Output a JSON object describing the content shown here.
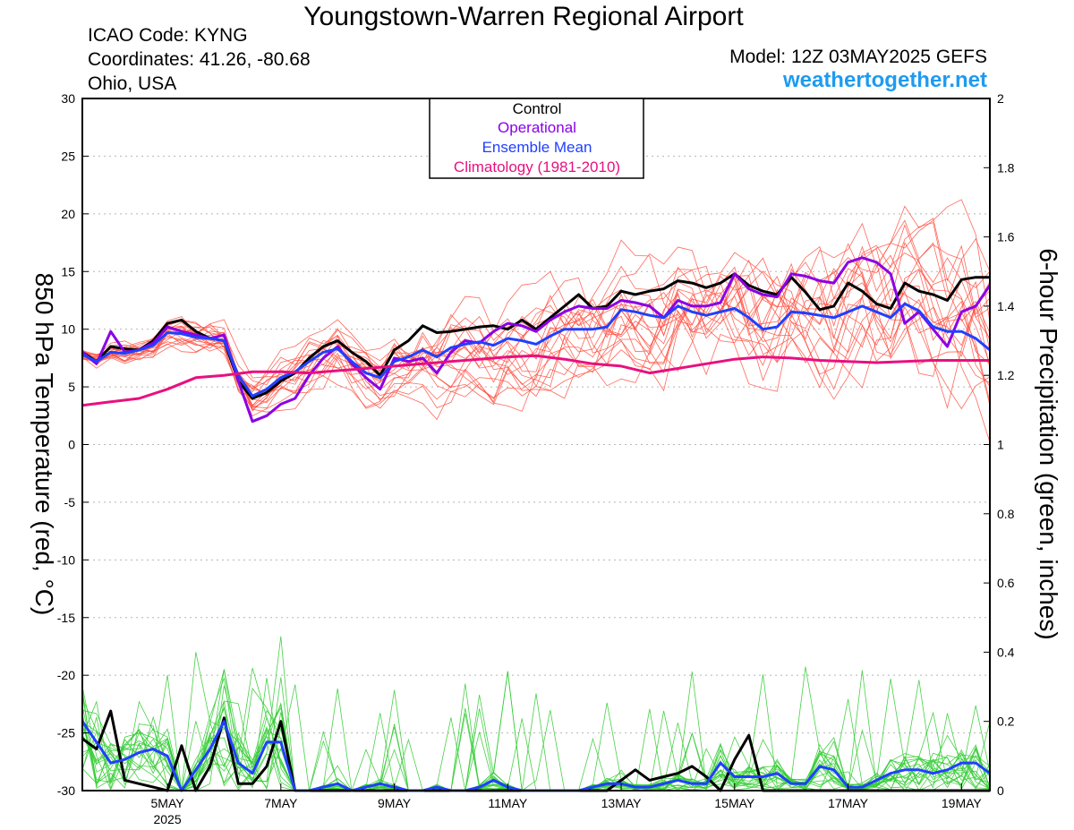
{
  "header": {
    "title": "Youngstown-Warren Regional Airport",
    "icao": "ICAO Code: KYNG",
    "coords": "Coordinates: 41.26, -80.68",
    "region": "Ohio, USA",
    "model": "Model: 12Z 03MAY2025 GEFS",
    "site": "weathertogether.net"
  },
  "colors": {
    "members_temp": "#ff4d40",
    "members_precip": "#33cc33",
    "control": "#000000",
    "operational": "#8a00e6",
    "ens_mean": "#2040ff",
    "climatology": "#e8107f"
  },
  "chart_data": {
    "type": "line",
    "xlabel": "",
    "ylabel": "850 hPa Temperature (red, °C)",
    "y2label": "6-hour Precipitation (green, inches)",
    "ylim": [
      -30,
      30
    ],
    "y2lim": [
      0,
      2
    ],
    "xlim": [
      3.5,
      19.5
    ],
    "x_unit": "day of May 2025 (fractional)",
    "yticks": [
      "30",
      "25",
      "20",
      "15",
      "10",
      "5",
      "0",
      "-5",
      "-10",
      "-15",
      "-20",
      "-25",
      "-30"
    ],
    "y2ticks": [
      "2",
      "1.8",
      "1.6",
      "1.4",
      "1.2",
      "1",
      "0.8",
      "0.6",
      "0.4",
      "0.2",
      "0"
    ],
    "xticks": [
      {
        "x": 5,
        "label": "5MAY",
        "sub": "2025"
      },
      {
        "x": 7,
        "label": "7MAY",
        "sub": ""
      },
      {
        "x": 9,
        "label": "9MAY",
        "sub": ""
      },
      {
        "x": 11,
        "label": "11MAY",
        "sub": ""
      },
      {
        "x": 13,
        "label": "13MAY",
        "sub": ""
      },
      {
        "x": 15,
        "label": "15MAY",
        "sub": ""
      },
      {
        "x": 17,
        "label": "17MAY",
        "sub": ""
      },
      {
        "x": 19,
        "label": "19MAY",
        "sub": ""
      }
    ],
    "grid": true,
    "legend": [
      "Control",
      "Operational",
      "Ensemble Mean",
      "Climatology (1981-2010)"
    ],
    "legend_position": "top-center",
    "series": [
      {
        "name": "Control",
        "axis": "temp",
        "x": [
          3.5,
          3.75,
          4.0,
          4.25,
          4.5,
          4.75,
          5.0,
          5.25,
          5.5,
          5.75,
          6.0,
          6.25,
          6.5,
          6.75,
          7.0,
          7.25,
          7.5,
          7.75,
          8.0,
          8.25,
          8.5,
          8.75,
          9.0,
          9.25,
          9.5,
          9.75,
          10.0,
          10.25,
          10.5,
          10.75,
          11.0,
          11.25,
          11.5,
          11.75,
          12.0,
          12.25,
          12.5,
          12.75,
          13.0,
          13.25,
          13.5,
          13.75,
          14.0,
          14.25,
          14.5,
          14.75,
          15.0,
          15.25,
          15.5,
          15.75,
          16.0,
          16.25,
          16.5,
          16.75,
          17.0,
          17.25,
          17.5,
          17.75,
          18.0,
          18.25,
          18.5,
          18.75,
          19.0,
          19.25,
          19.5
        ],
        "y": [
          8.0,
          7.2,
          8.5,
          8.3,
          8.2,
          9.0,
          10.5,
          10.8,
          9.8,
          9.2,
          9.0,
          5.5,
          4.0,
          4.5,
          5.5,
          6.2,
          7.5,
          8.5,
          9.0,
          8.0,
          7.2,
          6.0,
          8.2,
          9.0,
          10.3,
          9.7,
          9.8,
          10.0,
          10.2,
          10.3,
          10.0,
          10.8,
          10.0,
          11.0,
          12.0,
          13.0,
          11.8,
          12.0,
          13.3,
          13.0,
          13.3,
          13.5,
          14.2,
          14.0,
          13.6,
          14.0,
          14.8,
          13.8,
          13.3,
          13.0,
          14.5,
          13.2,
          11.7,
          12.0,
          14.0,
          13.3,
          12.2,
          11.8,
          14.0,
          13.3,
          13.0,
          12.5,
          14.3,
          14.5,
          14.5
        ]
      },
      {
        "name": "Operational",
        "axis": "temp",
        "x": [
          3.5,
          3.75,
          4.0,
          4.25,
          4.5,
          4.75,
          5.0,
          5.25,
          5.5,
          5.75,
          6.0,
          6.25,
          6.5,
          6.75,
          7.0,
          7.25,
          7.5,
          7.75,
          8.0,
          8.25,
          8.5,
          8.75,
          9.0,
          9.25,
          9.5,
          9.75,
          10.0,
          10.25,
          10.5,
          10.75,
          11.0,
          11.25,
          11.5,
          11.75,
          12.0,
          12.25,
          12.5,
          12.75,
          13.0,
          13.25,
          13.5,
          13.75,
          14.0,
          14.25,
          14.5,
          14.75,
          15.0,
          15.25,
          15.5,
          15.75,
          16.0,
          16.25,
          16.5,
          16.75,
          17.0,
          17.25,
          17.5,
          17.75,
          18.0,
          18.25,
          18.5,
          18.75,
          19.0,
          19.25,
          19.5
        ],
        "y": [
          8.0,
          7.0,
          9.8,
          8.0,
          8.2,
          8.8,
          10.2,
          9.8,
          9.5,
          9.2,
          9.5,
          5.5,
          2.0,
          2.5,
          3.5,
          4.0,
          6.0,
          7.5,
          8.5,
          7.0,
          5.8,
          4.8,
          7.5,
          7.2,
          7.5,
          6.2,
          8.0,
          9.0,
          8.8,
          9.8,
          10.5,
          10.3,
          9.8,
          10.8,
          11.5,
          12.0,
          11.8,
          11.8,
          12.5,
          12.3,
          12.0,
          11.0,
          12.5,
          12.0,
          12.0,
          12.3,
          14.8,
          13.5,
          13.0,
          12.8,
          14.8,
          14.6,
          14.2,
          14.0,
          15.8,
          16.2,
          15.8,
          14.8,
          10.5,
          11.5,
          10.0,
          8.5,
          11.5,
          12.0,
          13.8
        ]
      },
      {
        "name": "Ensemble Mean",
        "axis": "temp",
        "x": [
          3.5,
          3.75,
          4.0,
          4.25,
          4.5,
          4.75,
          5.0,
          5.25,
          5.5,
          5.75,
          6.0,
          6.25,
          6.5,
          6.75,
          7.0,
          7.25,
          7.5,
          7.75,
          8.0,
          8.25,
          8.5,
          8.75,
          9.0,
          9.25,
          9.5,
          9.75,
          10.0,
          10.25,
          10.5,
          10.75,
          11.0,
          11.25,
          11.5,
          11.75,
          12.0,
          12.25,
          12.5,
          12.75,
          13.0,
          13.25,
          13.5,
          13.75,
          14.0,
          14.25,
          14.5,
          14.75,
          15.0,
          15.25,
          15.5,
          15.75,
          16.0,
          16.25,
          16.5,
          16.75,
          17.0,
          17.25,
          17.5,
          17.75,
          18.0,
          18.25,
          18.5,
          18.75,
          19.0,
          19.25,
          19.5
        ],
        "y": [
          7.8,
          7.2,
          8.0,
          7.9,
          8.2,
          8.6,
          9.7,
          9.6,
          9.3,
          9.2,
          9.0,
          6.0,
          4.2,
          4.8,
          5.8,
          6.3,
          7.2,
          8.0,
          8.3,
          7.2,
          6.2,
          5.8,
          7.2,
          7.6,
          8.2,
          7.6,
          8.4,
          8.7,
          8.9,
          8.6,
          9.2,
          9.0,
          8.7,
          9.4,
          10.0,
          10.0,
          10.0,
          10.2,
          11.7,
          11.5,
          11.2,
          11.0,
          12.0,
          11.5,
          11.2,
          11.5,
          11.8,
          11.0,
          10.0,
          10.2,
          11.5,
          11.4,
          11.2,
          11.0,
          11.5,
          12.0,
          11.5,
          11.0,
          12.2,
          11.6,
          10.2,
          9.8,
          9.8,
          9.2,
          8.2
        ]
      },
      {
        "name": "Climatology (1981-2010)",
        "axis": "temp",
        "x": [
          3.5,
          4.0,
          4.5,
          5.0,
          5.5,
          6.0,
          6.5,
          7.0,
          7.5,
          8.0,
          8.5,
          9.0,
          9.5,
          10.0,
          10.5,
          11.0,
          11.5,
          12.0,
          12.5,
          13.0,
          13.5,
          14.0,
          14.5,
          15.0,
          15.5,
          16.0,
          16.5,
          17.0,
          17.5,
          18.0,
          18.5,
          19.0,
          19.5
        ],
        "y": [
          3.4,
          3.7,
          4.0,
          4.8,
          5.8,
          6.0,
          6.3,
          6.3,
          6.2,
          6.4,
          6.6,
          6.8,
          7.0,
          7.2,
          7.4,
          7.6,
          7.7,
          7.4,
          7.0,
          6.8,
          6.2,
          6.6,
          7.0,
          7.4,
          7.6,
          7.5,
          7.3,
          7.2,
          7.1,
          7.2,
          7.3,
          7.3,
          7.3
        ]
      },
      {
        "name": "Control",
        "axis": "precip",
        "x": [
          3.5,
          3.75,
          4.0,
          4.25,
          4.5,
          4.75,
          5.0,
          5.25,
          5.5,
          5.75,
          6.0,
          6.25,
          6.5,
          6.75,
          7.0,
          7.25,
          7.5,
          7.75,
          8.0,
          8.25,
          8.5,
          8.75,
          9.0,
          9.25,
          9.5,
          9.75,
          10.0,
          10.25,
          10.5,
          10.75,
          11.0,
          11.25,
          11.5,
          11.75,
          12.0,
          12.25,
          12.5,
          12.75,
          13.0,
          13.25,
          13.5,
          13.75,
          14.0,
          14.25,
          14.5,
          14.75,
          15.0,
          15.25,
          15.5,
          15.75,
          16.0,
          16.25,
          16.5,
          16.75,
          17.0,
          17.25,
          17.5,
          17.75,
          18.0,
          18.25,
          18.5,
          18.75,
          19.0,
          19.25,
          19.5
        ],
        "y": [
          0.15,
          0.12,
          0.23,
          0.03,
          0.02,
          0.01,
          0.0,
          0.13,
          0.0,
          0.07,
          0.21,
          0.02,
          0.02,
          0.07,
          0.2,
          0.0,
          0.0,
          0.0,
          0.0,
          0.0,
          0.0,
          0.0,
          0.0,
          0.0,
          0.0,
          0.0,
          0.0,
          0.0,
          0.0,
          0.0,
          0.0,
          0.0,
          0.0,
          0.0,
          0.0,
          0.0,
          0.0,
          0.0,
          0.03,
          0.06,
          0.03,
          0.04,
          0.05,
          0.07,
          0.04,
          0.0,
          0.09,
          0.16,
          0.0,
          0.0,
          0.0,
          0.0,
          0.0,
          0.0,
          0.0,
          0.0,
          0.0,
          0.0,
          0.0,
          0.0,
          0.0,
          0.0,
          0.0,
          0.0,
          0.0
        ]
      },
      {
        "name": "Ensemble Mean",
        "axis": "precip",
        "x": [
          3.5,
          3.75,
          4.0,
          4.25,
          4.5,
          4.75,
          5.0,
          5.25,
          5.5,
          5.75,
          6.0,
          6.25,
          6.5,
          6.75,
          7.0,
          7.25,
          7.5,
          7.75,
          8.0,
          8.25,
          8.5,
          8.75,
          9.0,
          9.25,
          9.5,
          9.75,
          10.0,
          10.25,
          10.5,
          10.75,
          11.0,
          11.25,
          11.5,
          11.75,
          12.0,
          12.25,
          12.5,
          12.75,
          13.0,
          13.25,
          13.5,
          13.75,
          14.0,
          14.25,
          14.5,
          14.75,
          15.0,
          15.25,
          15.5,
          15.75,
          16.0,
          16.25,
          16.5,
          16.75,
          17.0,
          17.25,
          17.5,
          17.75,
          18.0,
          18.25,
          18.5,
          18.75,
          19.0,
          19.25,
          19.5
        ],
        "y": [
          0.2,
          0.14,
          0.08,
          0.09,
          0.11,
          0.12,
          0.1,
          0.0,
          0.06,
          0.12,
          0.2,
          0.08,
          0.05,
          0.14,
          0.14,
          0.0,
          0.0,
          0.01,
          0.02,
          0.0,
          0.01,
          0.02,
          0.01,
          0.0,
          0.0,
          0.01,
          0.0,
          0.0,
          0.01,
          0.03,
          0.01,
          0.0,
          0.0,
          0.0,
          0.0,
          0.0,
          0.01,
          0.02,
          0.02,
          0.01,
          0.01,
          0.02,
          0.03,
          0.02,
          0.02,
          0.08,
          0.04,
          0.04,
          0.04,
          0.05,
          0.02,
          0.02,
          0.07,
          0.06,
          0.01,
          0.01,
          0.03,
          0.05,
          0.06,
          0.06,
          0.05,
          0.06,
          0.08,
          0.08,
          0.05
        ]
      }
    ]
  }
}
